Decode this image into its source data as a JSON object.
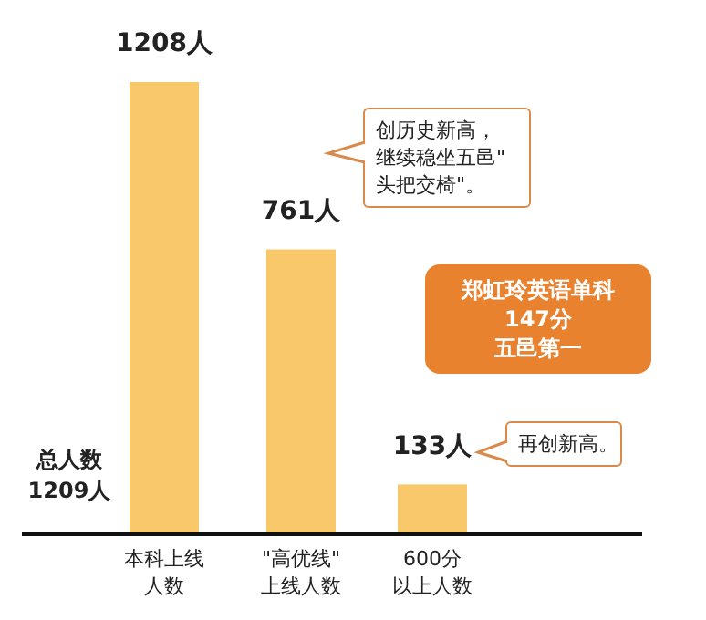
{
  "chart_data": {
    "type": "bar",
    "categories": [
      "本科上线人数",
      "\"高优线\"上线人数",
      "600分以上人数"
    ],
    "values": [
      1208,
      761,
      133
    ],
    "value_labels": [
      "1208人",
      "761人",
      "133人"
    ],
    "color": "#f9c86b",
    "annotations": [
      "创历史新高，继续稳坐五邑\"头把交椅\"。",
      "再创新高。",
      "郑虹玲英语单科147分五邑第一",
      "总人数1209人"
    ]
  }
}
